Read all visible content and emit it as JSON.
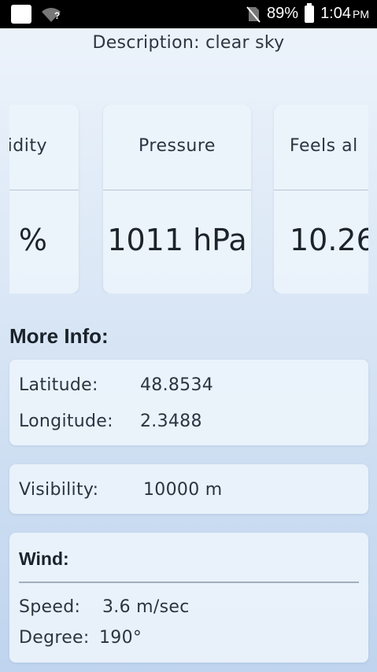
{
  "status_bar": {
    "battery": "89%",
    "time": "1:04",
    "ampm": "PM"
  },
  "description": "Description: clear sky",
  "cards": [
    {
      "label": "idity",
      "value": "%"
    },
    {
      "label": "Pressure",
      "value": "1011 hPa"
    },
    {
      "label": "Feels al",
      "value": "10.26"
    }
  ],
  "more_info": {
    "title": "More Info:",
    "latitude_label": "Latitude:",
    "latitude_value": "48.8534",
    "longitude_label": "Longitude:",
    "longitude_value": "2.3488",
    "visibility_label": "Visibility:",
    "visibility_value": "10000 m"
  },
  "wind": {
    "title": "Wind:",
    "speed_label": "Speed:",
    "speed_value": "3.6 m/sec",
    "degree_label": "Degree:",
    "degree_value": "190°"
  },
  "icons": {
    "app": "app-notification-icon",
    "wifi": "wifi-unknown-icon",
    "sim": "no-sim-icon",
    "battery": "battery-icon"
  }
}
